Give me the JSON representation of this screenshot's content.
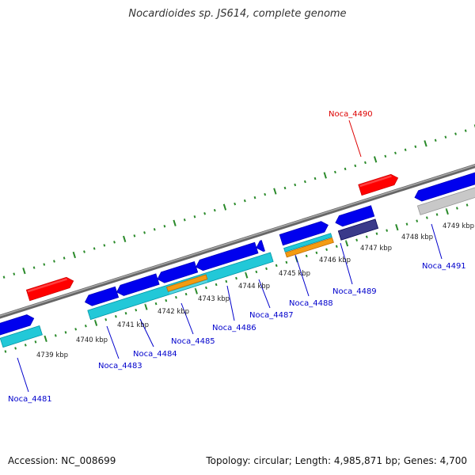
{
  "title": "Nocardioides sp. JS614, complete genome",
  "footer": {
    "accession": "Accession: NC_008699",
    "topology": "Topology: circular; Length: 4,985,871 bp; Genes: 4,700"
  },
  "colors": {
    "background": "#ffffff",
    "backbone": "#888888",
    "forward_cds": "#0000ee",
    "reverse_cds": "#0000ee",
    "highlight_gene": "#ff0000",
    "tick": "#2a8a2a",
    "gene_label": "#0000cc",
    "highlight_label": "#dd0000",
    "cyan_feature": "#22c8d8",
    "orange_feature": "#f39c12",
    "grey_feature": "#c8c8c8",
    "navy_feature": "#3a3a8a"
  },
  "ticks": [
    "4739 kbp",
    "4740 kbp",
    "4741 kbp",
    "4742 kbp",
    "4743 kbp",
    "4744 kbp",
    "4745 kbp",
    "4746 kbp",
    "4747 kbp",
    "4748 kbp",
    "4749 kbp"
  ],
  "genes": [
    {
      "label": "Noca_4481",
      "highlight": false
    },
    {
      "label": "Noca_4483",
      "highlight": false
    },
    {
      "label": "Noca_4484",
      "highlight": false
    },
    {
      "label": "Noca_4485",
      "highlight": false
    },
    {
      "label": "Noca_4486",
      "highlight": false
    },
    {
      "label": "Noca_4487",
      "highlight": false
    },
    {
      "label": "Noca_4488",
      "highlight": false
    },
    {
      "label": "Noca_4489",
      "highlight": false
    },
    {
      "label": "Noca_4490",
      "highlight": true
    },
    {
      "label": "Noca_4491",
      "highlight": false
    }
  ]
}
